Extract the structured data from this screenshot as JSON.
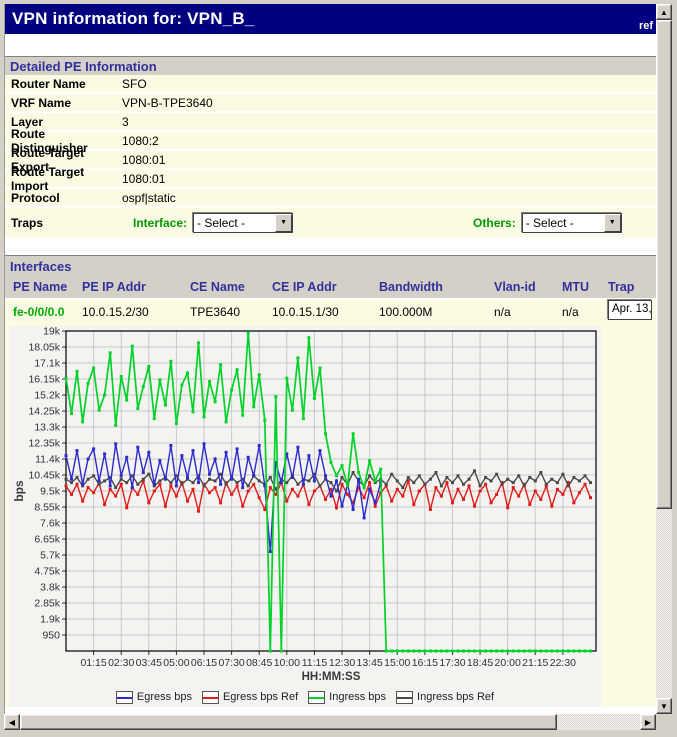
{
  "title_bar": {
    "title": "VPN information for: VPN_B_",
    "ref_label": "ref"
  },
  "detailed_pe": {
    "section_title": "Detailed PE Information",
    "rows": [
      {
        "label": "Router Name",
        "value": "SFO"
      },
      {
        "label": "VRF Name",
        "value": "VPN-B-TPE3640"
      },
      {
        "label": "Layer",
        "value": "3"
      },
      {
        "label": "Route Distinguisher",
        "value": "1080:2"
      },
      {
        "label": "Route Target Export",
        "value": "1080:01"
      },
      {
        "label": "Route Target Import",
        "value": "1080:01"
      },
      {
        "label": "Protocol",
        "value": "ospf|static"
      }
    ],
    "traps": {
      "label": "Traps",
      "interface_label": "Interface:",
      "interface_select_value": "- Select -",
      "others_label": "Others:",
      "others_select_value": "- Select -"
    }
  },
  "interfaces": {
    "section_title": "Interfaces",
    "columns": [
      "PE Name",
      "PE IP Addr",
      "CE Name",
      "CE IP Addr",
      "Bandwidth",
      "Vlan-id",
      "MTU",
      "Trap"
    ],
    "row": {
      "pe_name": "fe-0/0/0.0",
      "pe_ip": "10.0.15.2/30",
      "ce_name": "TPE3640",
      "ce_ip": "10.0.15.1/30",
      "bandwidth": "100.000M",
      "vlan_id": "n/a",
      "mtu": "n/a",
      "trap_value": "Apr. 13,"
    }
  },
  "chart_data": {
    "type": "line",
    "title": "",
    "xlabel": "HH:MM:SS",
    "ylabel": "bps",
    "ylim": [
      0,
      19000
    ],
    "ytick_step": 950,
    "ytick_labels": [
      "950",
      "1.9k",
      "2.85k",
      "3.8k",
      "4.75k",
      "5.7k",
      "6.65k",
      "7.6k",
      "8.55k",
      "9.5k",
      "10.45k",
      "11.4k",
      "12.35k",
      "13.3k",
      "14.25k",
      "15.2k",
      "16.15k",
      "17.1k",
      "18.05k",
      "19k"
    ],
    "xlim_minutes": [
      0,
      1440
    ],
    "xtick_interval_minutes": 75,
    "xtick_labels": [
      "01:15",
      "02:30",
      "03:45",
      "05:00",
      "06:15",
      "07:30",
      "08:45",
      "10:00",
      "11:15",
      "12:30",
      "13:45",
      "15:00",
      "16:15",
      "17:30",
      "18:45",
      "20:00",
      "21:15",
      "22:30"
    ],
    "sample_step_minutes": 15,
    "grid": true,
    "legend_position": "bottom",
    "series": [
      {
        "name": "Egress bps",
        "color": "#2B2BD0",
        "values_k": [
          11.6,
          10.2,
          11.9,
          9.9,
          11.4,
          12.0,
          10.1,
          11.7,
          9.8,
          12.3,
          10.4,
          11.5,
          9.7,
          12.1,
          10.6,
          11.8,
          9.9,
          11.3,
          10.2,
          12.2,
          9.8,
          11.6,
          10.3,
          11.9,
          10.0,
          12.3,
          10.5,
          11.4,
          9.9,
          11.8,
          10.2,
          12.0,
          9.7,
          11.5,
          10.4,
          12.2,
          9.8,
          5.9,
          11.2,
          10.0,
          11.7,
          10.3,
          12.1,
          9.9,
          11.6,
          10.1,
          11.9,
          10.4,
          9.2,
          10.1,
          8.6,
          9.9,
          8.4,
          10.2,
          7.9,
          9.6,
          8.8,
          10.0,
          null,
          null,
          null,
          null,
          null,
          null,
          null,
          null,
          null,
          null,
          null,
          null,
          null,
          null,
          null,
          null,
          null,
          null,
          null,
          null,
          null,
          null,
          null,
          null,
          null,
          null,
          null,
          null,
          null,
          null,
          null,
          null,
          null,
          null,
          null,
          null,
          null,
          null
        ]
      },
      {
        "name": "Egress bps Ref",
        "color": "#E31B1B",
        "values_k": [
          9.8,
          9.3,
          9.9,
          8.9,
          9.7,
          9.4,
          10.0,
          8.7,
          9.6,
          9.2,
          9.9,
          8.5,
          9.7,
          9.3,
          10.1,
          8.8,
          9.5,
          9.9,
          8.6,
          9.8,
          9.2,
          10.0,
          8.9,
          9.6,
          8.3,
          9.9,
          9.4,
          9.7,
          8.8,
          10.0,
          9.3,
          9.8,
          8.6,
          9.5,
          9.9,
          9.1,
          8.4,
          9.7,
          9.3,
          10.0,
          8.9,
          9.6,
          9.2,
          9.9,
          8.7,
          9.5,
          9.8,
          9.0,
          9.6,
          8.5,
          9.9,
          9.3,
          8.8,
          9.7,
          9.1,
          10.0,
          8.6,
          9.4,
          9.8,
          8.9,
          9.6,
          9.2,
          10.1,
          8.7,
          9.5,
          9.9,
          8.4,
          9.7,
          9.2,
          10.0,
          8.8,
          9.6,
          9.0,
          9.8,
          8.6,
          9.5,
          9.9,
          8.8,
          9.3,
          10.0,
          8.5,
          9.7,
          9.2,
          9.9,
          8.7,
          9.5,
          9.0,
          9.8,
          8.6,
          9.6,
          9.3,
          10.0,
          8.8,
          9.4,
          9.9,
          9.1
        ]
      },
      {
        "name": "Ingress bps",
        "color": "#00D22A",
        "values_k": [
          16.2,
          14.1,
          16.6,
          13.6,
          15.9,
          16.8,
          14.3,
          15.2,
          17.7,
          13.4,
          16.3,
          14.9,
          18.1,
          14.4,
          15.7,
          16.9,
          13.8,
          16.1,
          14.6,
          17.2,
          13.5,
          15.8,
          16.5,
          14.2,
          18.3,
          13.9,
          16.0,
          14.8,
          17.0,
          13.6,
          15.5,
          16.7,
          14.0,
          18.9,
          14.5,
          16.4,
          13.7,
          0,
          15.1,
          0,
          16.2,
          14.3,
          17.4,
          13.8,
          18.6,
          15.0,
          16.8,
          12.9,
          11.2,
          10.4,
          11.0,
          9.8,
          12.9,
          10.6,
          9.7,
          11.3,
          10.1,
          10.8,
          0,
          0,
          0,
          0,
          0,
          0,
          0,
          0,
          0,
          0,
          0,
          0,
          0,
          0,
          0,
          0,
          0,
          0,
          0,
          0,
          0,
          0,
          0,
          0,
          0,
          0,
          0,
          0,
          0,
          0,
          0,
          0,
          0,
          0,
          0,
          0,
          0,
          0
        ]
      },
      {
        "name": "Ingress bps Ref",
        "color": "#4A4A4A",
        "values_k": [
          10.2,
          10.0,
          10.3,
          9.8,
          10.2,
          10.4,
          9.9,
          10.1,
          10.3,
          9.7,
          10.2,
          10.0,
          10.4,
          9.9,
          10.2,
          10.5,
          9.8,
          10.1,
          10.3,
          10.0,
          10.4,
          9.9,
          10.2,
          10.0,
          10.4,
          9.8,
          10.2,
          10.1,
          10.5,
          9.9,
          10.3,
          10.0,
          10.2,
          9.8,
          10.4,
          10.1,
          9.9,
          10.3,
          9.6,
          10.2,
          10.0,
          10.4,
          9.9,
          10.2,
          10.1,
          10.5,
          9.8,
          10.2,
          10.0,
          9.5,
          10.3,
          9.9,
          10.6,
          10.1,
          9.8,
          10.4,
          10.0,
          10.2,
          9.9,
          10.5,
          10.1,
          9.7,
          10.3,
          10.0,
          10.4,
          9.9,
          10.2,
          10.6,
          9.8,
          10.3,
          10.0,
          10.4,
          9.9,
          10.2,
          10.7,
          9.8,
          10.3,
          10.1,
          10.5,
          9.9,
          10.2,
          10.0,
          10.4,
          9.8,
          10.3,
          10.1,
          10.6,
          9.9,
          10.2,
          10.0,
          10.5,
          9.8,
          10.3,
          10.1,
          10.4,
          10.0
        ]
      }
    ],
    "legend": [
      "Egress bps",
      "Egress bps Ref",
      "Ingress bps",
      "Ingress bps Ref"
    ]
  },
  "colors": {
    "title_bar_bg": "#000080",
    "section_text": "#31319C",
    "section_bg": "#D4D0C8",
    "row_bg": "#FBFBE3",
    "green_label": "#009900",
    "pe_name_green": "#00AA00"
  }
}
